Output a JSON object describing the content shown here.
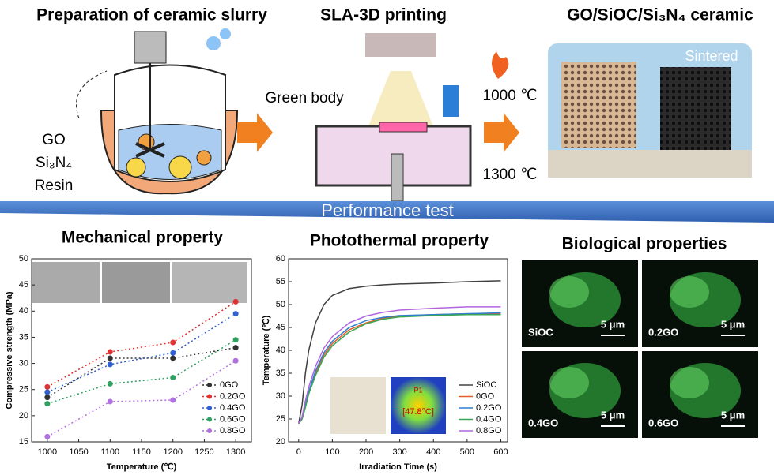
{
  "header": {
    "slurry_title": "Preparation of ceramic slurry",
    "printing_title": "SLA-3D printing",
    "ceramic_title": "GO/SiOC/Si₃N₄ ceramic"
  },
  "diagram": {
    "ingredients": [
      "GO",
      "Si₃N₄",
      "Resin"
    ],
    "green_body": "Green body",
    "temp_low": "1000 ℃",
    "temp_high": "1300 ℃",
    "sintered": "Sintered",
    "banner": "Performance test"
  },
  "sections": {
    "mechanical": "Mechanical property",
    "photothermal": "Photothermal property",
    "biological": "Biological properties"
  },
  "thermal_image": {
    "point": "P1",
    "reading": "[47.8°C]"
  },
  "bio_images": [
    {
      "label": "SiOC",
      "scale": "5 μm"
    },
    {
      "label": "0.2GO",
      "scale": "5 μm"
    },
    {
      "label": "0.4GO",
      "scale": "5 μm"
    },
    {
      "label": "0.6GO",
      "scale": "5 μm"
    }
  ],
  "chart_data": [
    {
      "type": "line",
      "x_label": "Temperature (℃)",
      "y_label": "Compressive strength (MPa)",
      "x": [
        1000,
        1100,
        1200,
        1300
      ],
      "xlim": [
        975,
        1325
      ],
      "xticks": [
        1000,
        1050,
        1100,
        1150,
        1200,
        1250,
        1300
      ],
      "ylim": [
        15,
        50
      ],
      "yticks": [
        15,
        20,
        25,
        30,
        35,
        40,
        45,
        50
      ],
      "line_style": "dotted",
      "markers": true,
      "legend": "lower right",
      "series": [
        {
          "name": "0GO",
          "color": "#333333",
          "values": [
            23.5,
            31,
            31,
            33
          ]
        },
        {
          "name": "0.2GO",
          "color": "#e03030",
          "values": [
            25.5,
            32.2,
            34,
            41.8
          ]
        },
        {
          "name": "0.4GO",
          "color": "#3060d0",
          "values": [
            24.5,
            29.8,
            32,
            39.5
          ]
        },
        {
          "name": "0.6GO",
          "color": "#30a060",
          "values": [
            22.3,
            26.1,
            27.3,
            34.5
          ]
        },
        {
          "name": "0.8GO",
          "color": "#b070e0",
          "values": [
            16,
            22.7,
            23,
            30.5
          ]
        }
      ]
    },
    {
      "type": "line",
      "x_label": "Irradiation Time (s)",
      "y_label": "Temperature (℃)",
      "x": [
        0,
        10,
        20,
        30,
        50,
        75,
        100,
        150,
        200,
        250,
        300,
        400,
        500,
        600
      ],
      "xlim": [
        -30,
        620
      ],
      "xticks": [
        0,
        100,
        200,
        300,
        400,
        500,
        600
      ],
      "ylim": [
        20,
        60
      ],
      "yticks": [
        20,
        25,
        30,
        35,
        40,
        45,
        50,
        55,
        60
      ],
      "line_style": "solid",
      "markers": false,
      "legend": "lower right",
      "series": [
        {
          "name": "SiOC",
          "color": "#404040",
          "values": [
            24,
            28,
            35,
            40,
            46,
            50,
            52,
            53.5,
            54,
            54.3,
            54.5,
            54.7,
            55,
            55.2
          ]
        },
        {
          "name": "0GO",
          "color": "#e0602a",
          "values": [
            24,
            25,
            28,
            31,
            35,
            39,
            41.5,
            44.5,
            46,
            47,
            47.5,
            47.8,
            48,
            48
          ]
        },
        {
          "name": "0.2GO",
          "color": "#2f7fd0",
          "values": [
            24,
            25,
            28,
            31,
            35.5,
            39.5,
            42,
            45,
            46.5,
            47.2,
            47.6,
            47.8,
            48,
            48.2
          ]
        },
        {
          "name": "0.4GO",
          "color": "#3aa655",
          "values": [
            24,
            25,
            27.5,
            30.5,
            34.5,
            38.5,
            41,
            44,
            45.8,
            46.8,
            47.3,
            47.6,
            47.8,
            47.8
          ]
        },
        {
          "name": "0.8GO",
          "color": "#b066e0",
          "values": [
            24,
            25.5,
            29,
            32,
            36.5,
            40.5,
            43,
            46,
            47.5,
            48.3,
            48.8,
            49.2,
            49.5,
            49.5
          ]
        }
      ]
    }
  ]
}
